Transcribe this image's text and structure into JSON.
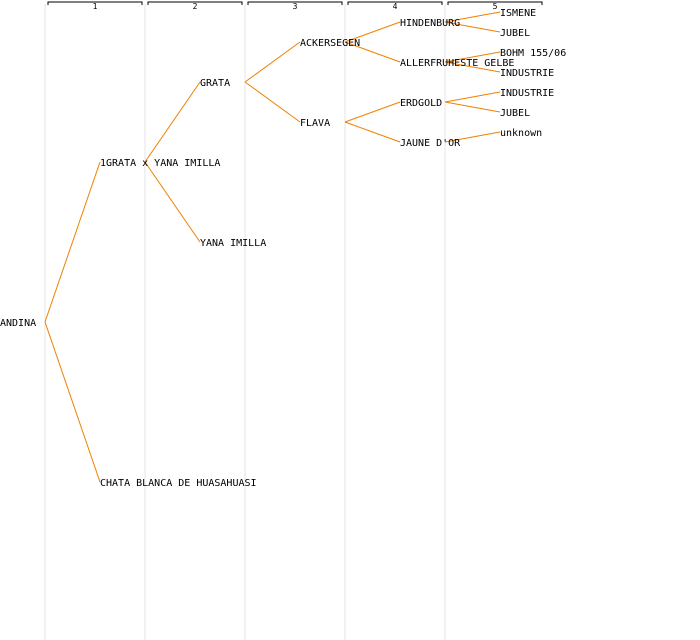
{
  "colors": {
    "edge": "#f08000",
    "column_line": "#e6e6e6",
    "text": "#000000",
    "background": "#ffffff"
  },
  "generations": [
    "1",
    "2",
    "3",
    "4",
    "5"
  ],
  "nodes": [
    {
      "id": "andina",
      "label": "ANDINA",
      "gen": 0
    },
    {
      "id": "grata-yana",
      "label": "1GRATA x YANA IMILLA",
      "gen": 1
    },
    {
      "id": "chata",
      "label": "CHATA BLANCA DE HUASAHUASI",
      "gen": 1
    },
    {
      "id": "grata",
      "label": "GRATA",
      "gen": 2
    },
    {
      "id": "yana",
      "label": "YANA IMILLA",
      "gen": 2
    },
    {
      "id": "ackersegen",
      "label": "ACKERSEGEN",
      "gen": 3
    },
    {
      "id": "flava",
      "label": "FLAVA",
      "gen": 3
    },
    {
      "id": "hindenburg",
      "label": "HINDENBURG",
      "gen": 4
    },
    {
      "id": "allerfrueste",
      "label": "ALLERFRUHESTE GELBE",
      "gen": 4
    },
    {
      "id": "erdgold",
      "label": "ERDGOLD",
      "gen": 4
    },
    {
      "id": "jaune",
      "label": "JAUNE D'OR",
      "gen": 4
    },
    {
      "id": "ismene",
      "label": "ISMENE",
      "gen": 5
    },
    {
      "id": "jubel1",
      "label": "JUBEL",
      "gen": 5
    },
    {
      "id": "bohm",
      "label": "BOHM 155/06",
      "gen": 5
    },
    {
      "id": "industrie1",
      "label": "INDUSTRIE",
      "gen": 5
    },
    {
      "id": "industrie2",
      "label": "INDUSTRIE",
      "gen": 5
    },
    {
      "id": "jubel2",
      "label": "JUBEL",
      "gen": 5
    },
    {
      "id": "unknown",
      "label": "unknown",
      "gen": 5
    }
  ],
  "edges": [
    [
      "andina",
      "grata-yana"
    ],
    [
      "andina",
      "chata"
    ],
    [
      "grata-yana",
      "grata"
    ],
    [
      "grata-yana",
      "yana"
    ],
    [
      "grata",
      "ackersegen"
    ],
    [
      "grata",
      "flava"
    ],
    [
      "ackersegen",
      "hindenburg"
    ],
    [
      "ackersegen",
      "allerfrueste"
    ],
    [
      "flava",
      "erdgold"
    ],
    [
      "flava",
      "jaune"
    ],
    [
      "hindenburg",
      "ismene"
    ],
    [
      "hindenburg",
      "jubel1"
    ],
    [
      "allerfrueste",
      "bohm"
    ],
    [
      "allerfrueste",
      "industrie1"
    ],
    [
      "erdgold",
      "industrie2"
    ],
    [
      "erdgold",
      "jubel2"
    ],
    [
      "jaune",
      "unknown"
    ]
  ]
}
